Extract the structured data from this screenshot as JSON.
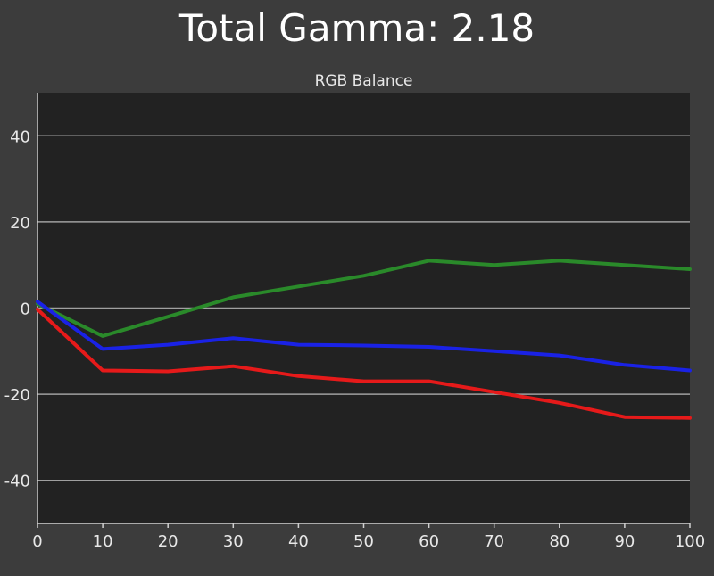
{
  "page": {
    "title": "Total Gamma: 2.18"
  },
  "chart_data": {
    "type": "line",
    "title": "RGB Balance",
    "xlabel": "",
    "ylabel": "",
    "xlim": [
      0,
      100
    ],
    "ylim": [
      -50,
      50
    ],
    "x_ticks": [
      0,
      10,
      20,
      30,
      40,
      50,
      60,
      70,
      80,
      90,
      100
    ],
    "y_ticks": [
      -40,
      -20,
      0,
      20,
      40
    ],
    "grid": "horizontal",
    "legend": "none",
    "x": [
      0,
      10,
      20,
      30,
      40,
      50,
      60,
      70,
      80,
      90,
      100
    ],
    "series": [
      {
        "color": "#2a8a2a",
        "values": [
          1,
          -6.5,
          -2,
          2.5,
          5,
          7.5,
          11,
          10,
          11,
          10,
          9
        ]
      },
      {
        "color": "#1a22e6",
        "values": [
          1.5,
          -9.5,
          -8.5,
          -7,
          -8.5,
          -8.7,
          -9,
          -10,
          -11,
          -13.2,
          -14.5
        ]
      },
      {
        "color": "#e61a1a",
        "values": [
          -0.3,
          -14.5,
          -14.7,
          -13.5,
          -15.8,
          -17,
          -17,
          -19.5,
          -22,
          -25.3,
          -25.5
        ]
      }
    ],
    "colors": {
      "background": "#3c3c3c",
      "plot_area": "#222222",
      "grid": "#a0a0a0",
      "axis": "#d0d0d0",
      "text": "#e8e8e8"
    }
  }
}
